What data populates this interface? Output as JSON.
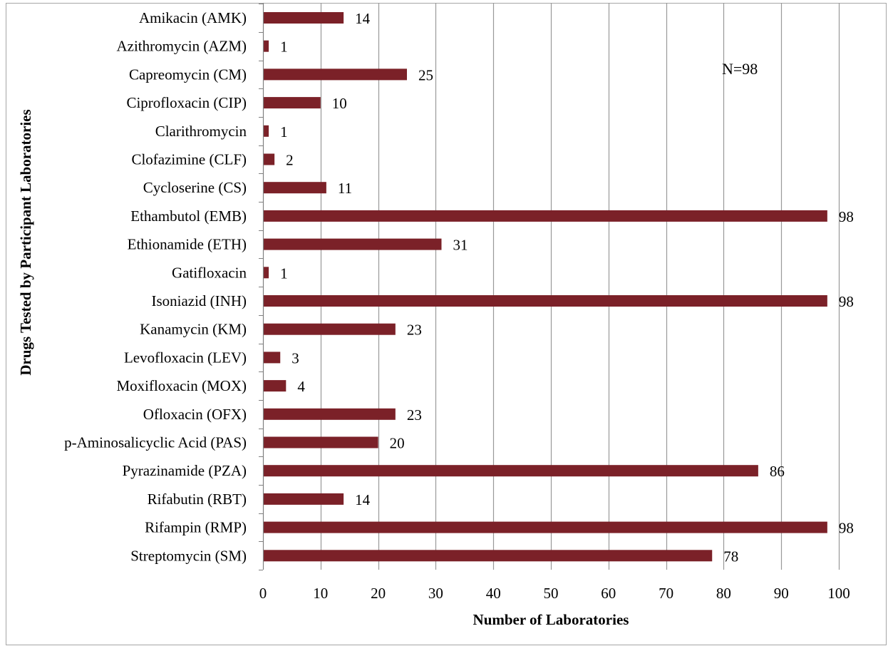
{
  "chart_data": {
    "type": "bar",
    "orientation": "horizontal",
    "categories": [
      "Amikacin (AMK)",
      "Azithromycin (AZM)",
      "Capreomycin (CM)",
      "Ciprofloxacin (CIP)",
      "Clarithromycin",
      "Clofazimine (CLF)",
      "Cycloserine (CS)",
      "Ethambutol (EMB)",
      "Ethionamide (ETH)",
      "Gatifloxacin",
      "Isoniazid (INH)",
      "Kanamycin (KM)",
      "Levofloxacin (LEV)",
      "Moxifloxacin (MOX)",
      "Ofloxacin (OFX)",
      "p-Aminosalicyclic Acid (PAS)",
      "Pyrazinamide (PZA)",
      "Rifabutin (RBT)",
      "Rifampin (RMP)",
      "Streptomycin (SM)"
    ],
    "values": [
      14,
      1,
      25,
      10,
      1,
      2,
      11,
      98,
      31,
      1,
      98,
      23,
      3,
      4,
      23,
      20,
      86,
      14,
      98,
      78
    ],
    "xlabel": "Number of Laboratories",
    "ylabel": "Drugs Tested by Participant Laboratories",
    "xlim": [
      0,
      100
    ],
    "xticks": [
      0,
      10,
      20,
      30,
      40,
      50,
      60,
      70,
      80,
      90,
      100
    ],
    "annotation": "N=98",
    "bar_color": "#7b2128",
    "grid": true,
    "legend": "none"
  }
}
